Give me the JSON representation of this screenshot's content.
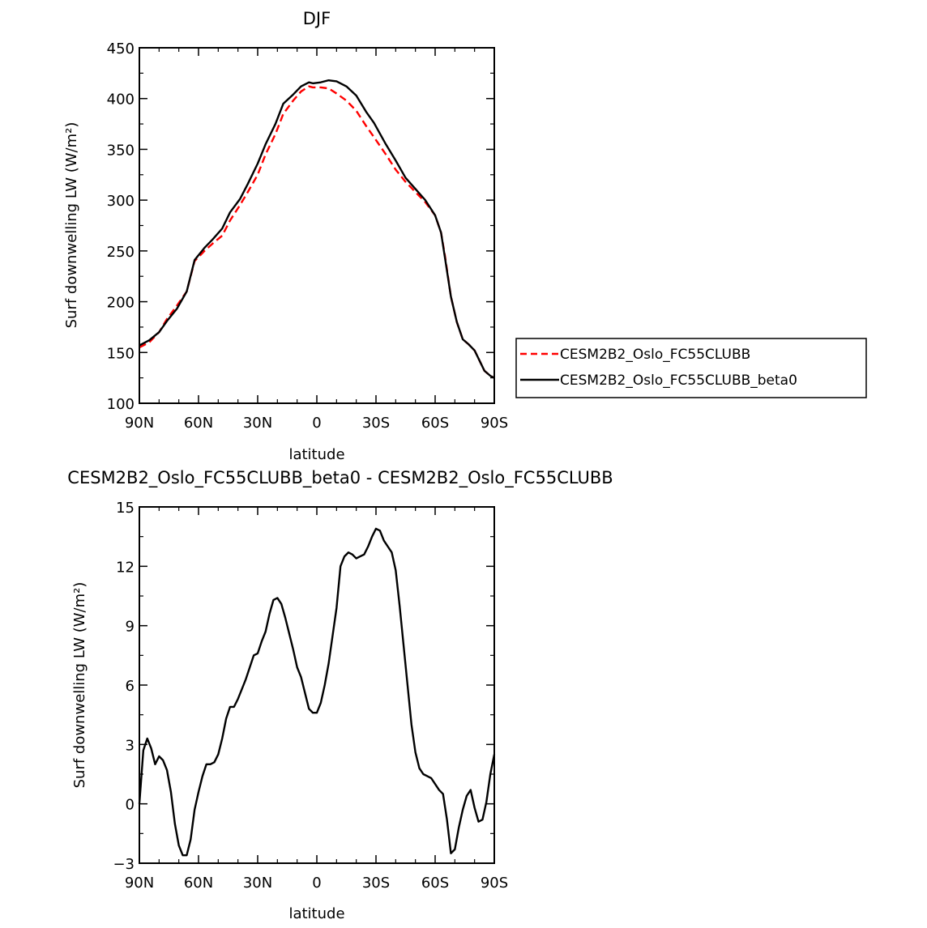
{
  "figure": {
    "colors": {
      "cesm": "#ff0000",
      "beta0": "#000000",
      "axes": "#000000"
    }
  },
  "chart_data": [
    {
      "type": "line",
      "title": "DJF",
      "xlabel": "latitude",
      "ylabel": "Surf downwelling LW (W/m²)",
      "xlim": [
        -90,
        90
      ],
      "ylim": [
        100,
        450
      ],
      "xticks": [
        -90,
        -60,
        -30,
        0,
        30,
        60,
        90
      ],
      "xticklabels": [
        "90N",
        "60N",
        "30N",
        "0",
        "30S",
        "60S",
        "90S"
      ],
      "yticks": [
        100,
        150,
        200,
        250,
        300,
        350,
        400,
        450
      ],
      "yticklabels": [
        "100",
        "150",
        "200",
        "250",
        "300",
        "350",
        "400",
        "450"
      ],
      "legend": "outside-right",
      "series": [
        {
          "name": "CESM2B2_Oslo_FC55CLUBB",
          "style": "dashed",
          "color": "#ff0000",
          "x": [
            -90,
            -85,
            -80,
            -76,
            -71,
            -66,
            -62,
            -57,
            -53,
            -48,
            -44,
            -39,
            -35,
            -30,
            -26,
            -21,
            -17,
            -12,
            -8,
            -4,
            -2,
            2,
            6,
            10,
            15,
            20,
            25,
            29,
            35,
            40,
            45,
            50,
            55,
            60,
            63,
            65,
            68,
            71,
            74,
            77,
            80,
            83,
            85,
            88,
            90
          ],
          "y": [
            155,
            160,
            170,
            183,
            196,
            210,
            240,
            250,
            257,
            265,
            280,
            295,
            308,
            325,
            345,
            365,
            385,
            398,
            407,
            412,
            411,
            411,
            410,
            405,
            398,
            388,
            373,
            362,
            345,
            330,
            318,
            308,
            298,
            285,
            268,
            245,
            205,
            180,
            163,
            158,
            152,
            140,
            132,
            127,
            125
          ]
        },
        {
          "name": "CESM2B2_Oslo_FC55CLUBB_beta0",
          "style": "solid",
          "color": "#000000",
          "x": [
            -90,
            -85,
            -80,
            -76,
            -71,
            -66,
            -62,
            -57,
            -53,
            -48,
            -44,
            -39,
            -35,
            -30,
            -26,
            -21,
            -17,
            -12,
            -8,
            -4,
            -2,
            2,
            6,
            10,
            15,
            20,
            25,
            29,
            35,
            40,
            45,
            50,
            55,
            60,
            63,
            65,
            68,
            71,
            74,
            77,
            80,
            83,
            85,
            88,
            90
          ],
          "y": [
            157,
            162,
            170,
            181,
            193,
            210,
            241,
            253,
            261,
            272,
            288,
            301,
            316,
            336,
            355,
            375,
            395,
            404,
            412,
            416,
            415,
            416,
            418,
            417,
            412,
            403,
            387,
            376,
            355,
            339,
            322,
            311,
            300,
            285,
            268,
            243,
            205,
            180,
            163,
            158,
            152,
            140,
            132,
            127,
            125
          ]
        }
      ]
    },
    {
      "type": "line",
      "title": "CESM2B2_Oslo_FC55CLUBB_beta0 - CESM2B2_Oslo_FC55CLUBB",
      "xlabel": "latitude",
      "ylabel": "Surf downwelling LW (W/m²)",
      "xlim": [
        -90,
        90
      ],
      "ylim": [
        -3,
        15
      ],
      "xticks": [
        -90,
        -60,
        -30,
        0,
        30,
        60,
        90
      ],
      "xticklabels": [
        "90N",
        "60N",
        "30N",
        "0",
        "30S",
        "60S",
        "90S"
      ],
      "yticks": [
        -3,
        0,
        3,
        6,
        9,
        12,
        15
      ],
      "yticklabels": [
        "−3",
        "0",
        "3",
        "6",
        "9",
        "12",
        "15"
      ],
      "series": [
        {
          "style": "solid",
          "color": "#000000",
          "x": [
            -90,
            -88,
            -86,
            -84,
            -82,
            -80,
            -78,
            -76,
            -74,
            -72,
            -70,
            -68,
            -66,
            -64,
            -62,
            -60,
            -58,
            -56,
            -54,
            -52,
            -50,
            -48,
            -46,
            -44,
            -42,
            -40,
            -38,
            -36,
            -34,
            -32,
            -30,
            -28,
            -26,
            -24,
            -22,
            -20,
            -18,
            -16,
            -14,
            -12,
            -10,
            -8,
            -6,
            -4,
            -2,
            0,
            2,
            4,
            6,
            8,
            10,
            12,
            14,
            16,
            18,
            20,
            22,
            24,
            26,
            28,
            30,
            32,
            34,
            36,
            38,
            40,
            42,
            44,
            46,
            48,
            50,
            52,
            54,
            56,
            58,
            60,
            62,
            64,
            66,
            68,
            70,
            72,
            74,
            76,
            78,
            80,
            82,
            84,
            86,
            88,
            90
          ],
          "y": [
            0,
            2.7,
            3.3,
            2.8,
            2.0,
            2.4,
            2.2,
            1.7,
            0.6,
            -1.0,
            -2.1,
            -2.6,
            -2.6,
            -1.8,
            -0.3,
            0.6,
            1.4,
            2.0,
            2.0,
            2.1,
            2.5,
            3.3,
            4.3,
            4.9,
            4.9,
            5.3,
            5.8,
            6.3,
            6.9,
            7.5,
            7.6,
            8.2,
            8.7,
            9.6,
            10.3,
            10.4,
            10.1,
            9.4,
            8.6,
            7.8,
            6.9,
            6.4,
            5.6,
            4.8,
            4.6,
            4.6,
            5.1,
            6.0,
            7.1,
            8.5,
            9.9,
            12.0,
            12.5,
            12.7,
            12.6,
            12.4,
            12.5,
            12.6,
            13.0,
            13.5,
            13.9,
            13.8,
            13.3,
            13.0,
            12.7,
            11.8,
            10.0,
            8.0,
            6.0,
            4.0,
            2.6,
            1.8,
            1.5,
            1.4,
            1.3,
            1.0,
            0.7,
            0.5,
            -0.8,
            -2.5,
            -2.3,
            -1.2,
            -0.3,
            0.4,
            0.7,
            -0.2,
            -0.9,
            -0.8,
            0.1,
            1.5,
            2.5
          ]
        }
      ]
    }
  ]
}
